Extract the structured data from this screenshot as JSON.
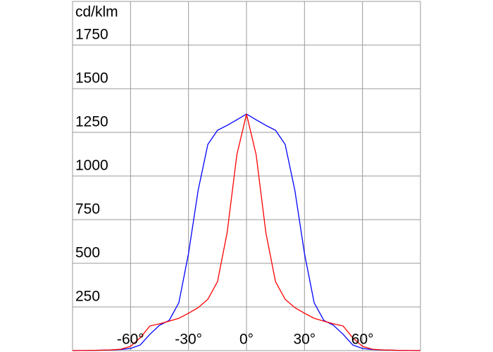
{
  "chart_data": {
    "type": "line",
    "y_label": "cd/klm",
    "x": [
      -90,
      -80,
      -70,
      -65,
      -60,
      -55,
      -50,
      -45,
      -40,
      -35,
      -30,
      -25,
      -20,
      -15,
      -10,
      -5,
      0,
      5,
      10,
      15,
      20,
      25,
      30,
      35,
      40,
      45,
      50,
      55,
      60,
      65,
      70,
      80,
      90
    ],
    "series": [
      {
        "color": "#0000ff",
        "values": [
          0,
          1,
          4,
          6,
          12,
          32,
          93,
          145,
          173,
          274,
          556,
          919,
          1181,
          1262,
          1290,
          1322,
          1355,
          1322,
          1290,
          1262,
          1181,
          919,
          556,
          274,
          173,
          145,
          93,
          32,
          12,
          6,
          4,
          1,
          0
        ]
      },
      {
        "color": "#ff0000",
        "values": [
          0,
          1,
          4,
          8,
          24,
          73,
          141,
          153,
          169,
          185,
          214,
          246,
          294,
          395,
          677,
          1121,
          1355,
          1121,
          677,
          395,
          294,
          246,
          214,
          185,
          169,
          153,
          141,
          73,
          24,
          8,
          4,
          1,
          0
        ]
      }
    ],
    "xlim": [
      -90,
      90
    ],
    "xticks": [
      {
        "value": -60,
        "label": "-60°"
      },
      {
        "value": -30,
        "label": "-30°"
      },
      {
        "value": 0,
        "label": "0°"
      },
      {
        "value": 30,
        "label": "30°"
      },
      {
        "value": 60,
        "label": "60°"
      }
    ],
    "ylim": [
      0,
      2000
    ],
    "yticks": [
      250,
      500,
      750,
      1000,
      1250,
      1500,
      1750
    ],
    "grid": true
  }
}
